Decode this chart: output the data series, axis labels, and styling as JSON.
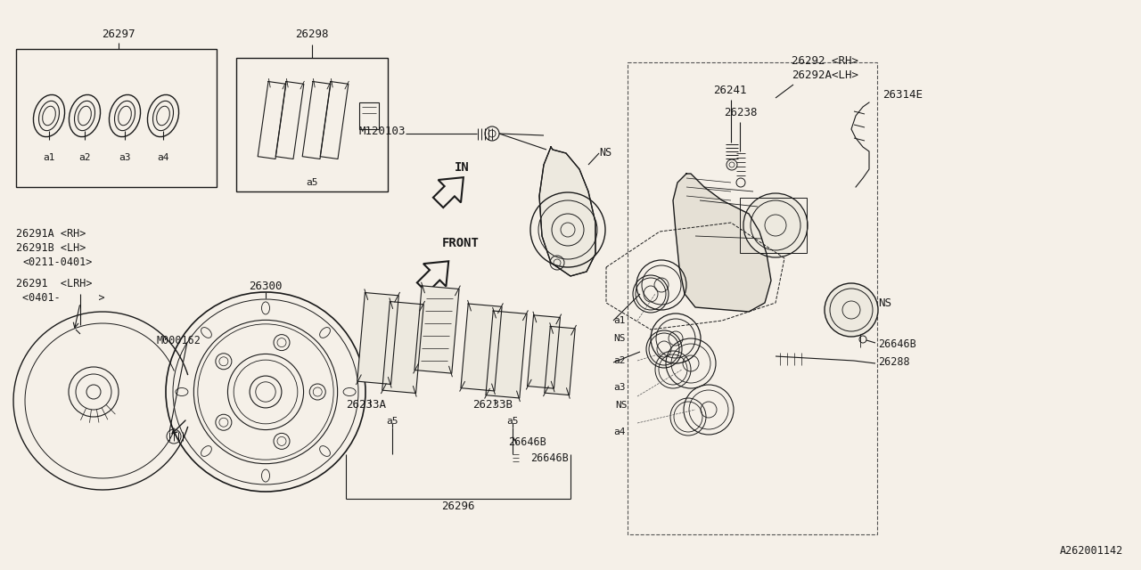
{
  "bg_color": "#f5f0e8",
  "line_color": "#1a1a1a",
  "text_color": "#1a1a1a",
  "figsize": [
    12.8,
    6.4
  ],
  "dpi": 100,
  "labels": {
    "26297": [
      0.122,
      0.942
    ],
    "26298": [
      0.318,
      0.942
    ],
    "26291A_RH": "26291A <RH>",
    "26291B_LH": "26291B <LH>",
    "date1": "<0211-0401>",
    "26291_LRH": "26291  <LRH>",
    "date2": "<0401-      >",
    "M000162": "M000162",
    "26300": "26300",
    "26233A": "26233A",
    "26233B": "26233B",
    "26296": "26296",
    "M120103": "M120103",
    "NS1": "NS",
    "26241": "26241",
    "26238": "26238",
    "26292_RH": "26292 <RH>",
    "26292A_LH": "26292A<LH>",
    "26314E": "26314E",
    "NS2": "NS",
    "26646B_r": "26646B",
    "26288": "26288",
    "NS3": "NS",
    "NS4": "NS",
    "26646B_mid": "26646B",
    "26646B_bot": "26646B",
    "a1_box": "a1",
    "a2_box": "a2",
    "a3_box": "a3",
    "a4_box": "a4",
    "a5_box1": "a5",
    "a5_box2": "a5",
    "a5_box3": "a5",
    "a1_cal": "a1",
    "a2_cal": "a2",
    "a3_cal": "a3",
    "a4_cal": "a4",
    "A262001142": "A262001142"
  }
}
